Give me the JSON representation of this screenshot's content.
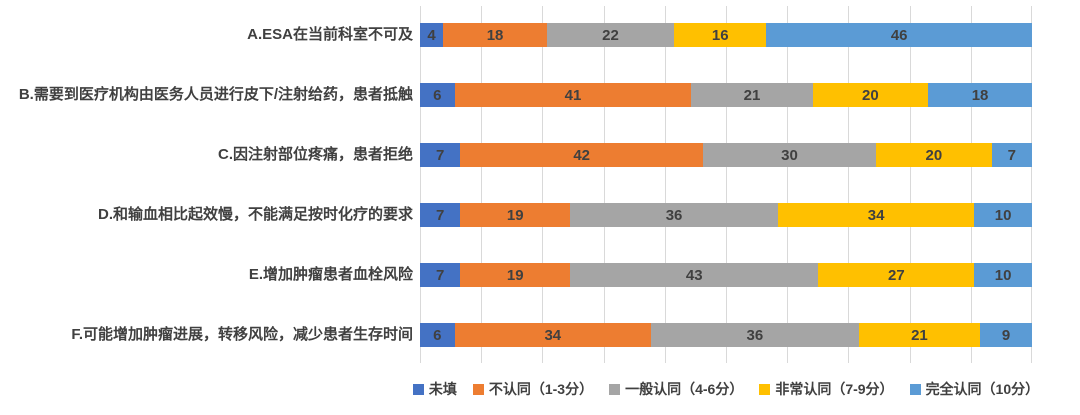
{
  "chart_data": {
    "type": "bar",
    "subtype": "stacked-horizontal-100pct",
    "title": "",
    "xlabel": "",
    "ylabel": "",
    "xlim": [
      0,
      106
    ],
    "total_per_row": 106,
    "gridlines": true,
    "gridline_divisions": 10,
    "gridline_color": "#d9d9d9",
    "value_labels": true,
    "value_label_color": "#404040",
    "legend_position": "bottom",
    "categories": [
      "A.ESA在当前科室不可及",
      "B.需要到医疗机构由医务人员进行皮下/注射给药，患者抵触",
      "C.因注射部位疼痛，患者拒绝",
      "D.和输血相比起效慢，不能满足按时化疗的要求",
      "E.增加肿瘤患者血栓风险",
      "F.可能增加肿瘤进展，转移风险，减少患者生存时间"
    ],
    "series": [
      {
        "name": "未填",
        "color": "#4472c4",
        "values": [
          4,
          6,
          7,
          7,
          7,
          6
        ]
      },
      {
        "name": "不认同（1-3分）",
        "color": "#ed7d31",
        "values": [
          18,
          41,
          42,
          19,
          19,
          34
        ]
      },
      {
        "name": "一般认同（4-6分）",
        "color": "#a5a5a5",
        "values": [
          22,
          21,
          30,
          36,
          43,
          36
        ]
      },
      {
        "name": "非常认同（7-9分）",
        "color": "#ffc000",
        "values": [
          16,
          20,
          20,
          34,
          27,
          21
        ]
      },
      {
        "name": "完全认同（10分）",
        "color": "#5b9bd5",
        "values": [
          46,
          18,
          7,
          10,
          10,
          9
        ]
      }
    ]
  }
}
